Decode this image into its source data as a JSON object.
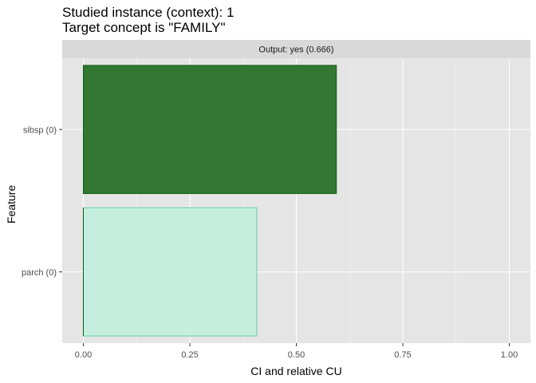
{
  "chart_data": {
    "type": "bar",
    "orientation": "horizontal",
    "title": "Studied instance (context): 1",
    "subtitle": "Target concept is \"FAMILY\"",
    "facet_label": "Output: yes (0.666)",
    "xlabel": "CI and relative CU",
    "ylabel": "Feature",
    "xlim": [
      0,
      1
    ],
    "x_ticks": [
      "0.00",
      "0.25",
      "0.50",
      "0.75",
      "1.00"
    ],
    "grid": true,
    "categories": [
      "sibsp (0)",
      "parch (0)"
    ],
    "series": [
      {
        "values": [
          0.594,
          0.407
        ],
        "fill_colors": [
          "#1e6b1e",
          "#c2eedd"
        ],
        "stroke_colors": [
          "#0f5a0f",
          "#5fd1a6"
        ]
      },
      {
        "values": [
          0.0,
          0.0
        ]
      }
    ]
  }
}
